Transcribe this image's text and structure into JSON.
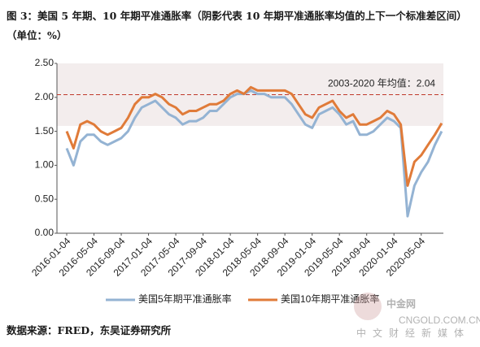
{
  "chart_data": {
    "type": "line",
    "title": "图 3：美国 5 年期、10 年期平准通胀率（阴影代表 10 年期平准通胀率均值的上下一个标准差区间）（单位：%）",
    "source": "数据来源：FRED，东吴证券研究所",
    "watermark": {
      "brand": "中金网",
      "site": "CNGOLD.COM.CN",
      "slogan": "中文财经新媒体"
    },
    "categories": [
      "2016-01-04",
      null,
      null,
      null,
      "2016-05-04",
      null,
      null,
      null,
      "2016-09-04",
      null,
      null,
      null,
      "2017-01-04",
      null,
      null,
      null,
      "2017-05-04",
      null,
      null,
      null,
      "2017-09-04",
      null,
      null,
      null,
      "2018-01-04",
      null,
      null,
      null,
      "2018-05-04",
      null,
      null,
      null,
      "2018-09-04",
      null,
      null,
      null,
      "2019-01-04",
      null,
      null,
      null,
      "2019-05-04",
      null,
      null,
      null,
      "2019-09-04",
      null,
      null,
      null,
      "2020-01-04",
      null,
      null,
      null,
      "2020-05-04",
      null,
      null,
      null
    ],
    "series": [
      {
        "name": "美国5年期平准通胀率",
        "color": "#94b3d3",
        "values": [
          1.25,
          1.0,
          1.35,
          1.45,
          1.45,
          1.35,
          1.3,
          1.35,
          1.4,
          1.5,
          1.7,
          1.85,
          1.9,
          1.95,
          1.85,
          1.75,
          1.7,
          1.6,
          1.65,
          1.65,
          1.7,
          1.8,
          1.8,
          1.9,
          2.0,
          2.05,
          2.05,
          2.1,
          2.05,
          2.05,
          2.0,
          2.0,
          2.0,
          1.9,
          1.75,
          1.6,
          1.55,
          1.75,
          1.8,
          1.85,
          1.75,
          1.6,
          1.65,
          1.45,
          1.45,
          1.5,
          1.6,
          1.7,
          1.65,
          1.55,
          0.25,
          0.7,
          0.9,
          1.05,
          1.3,
          1.5
        ]
      },
      {
        "name": "美国10年期平准通胀率",
        "color": "#e07b39",
        "values": [
          1.5,
          1.25,
          1.6,
          1.65,
          1.6,
          1.5,
          1.45,
          1.5,
          1.55,
          1.7,
          1.9,
          2.0,
          2.0,
          2.05,
          2.0,
          1.9,
          1.85,
          1.75,
          1.8,
          1.8,
          1.85,
          1.9,
          1.9,
          1.95,
          2.05,
          2.1,
          2.05,
          2.15,
          2.1,
          2.1,
          2.1,
          2.1,
          2.1,
          2.05,
          1.9,
          1.75,
          1.7,
          1.85,
          1.9,
          1.95,
          1.8,
          1.7,
          1.75,
          1.6,
          1.6,
          1.65,
          1.7,
          1.8,
          1.75,
          1.6,
          0.7,
          1.05,
          1.15,
          1.3,
          1.45,
          1.62
        ]
      }
    ],
    "band": [
      1.58,
      2.5
    ],
    "band_color": "#f3eded",
    "mean": 2.04,
    "mean_label": "2003-2020 年均值：2.04",
    "mean_color": "#c0392b",
    "ylim": [
      0,
      2.5
    ],
    "yticks": [
      {
        "value": 0,
        "label": "0.00"
      },
      {
        "value": 0.5,
        "label": "0.50"
      },
      {
        "value": 1,
        "label": "1.00"
      },
      {
        "value": 1.5,
        "label": "1.50"
      },
      {
        "value": 2,
        "label": "2.00"
      },
      {
        "value": 2.5,
        "label": "2.50"
      }
    ]
  }
}
